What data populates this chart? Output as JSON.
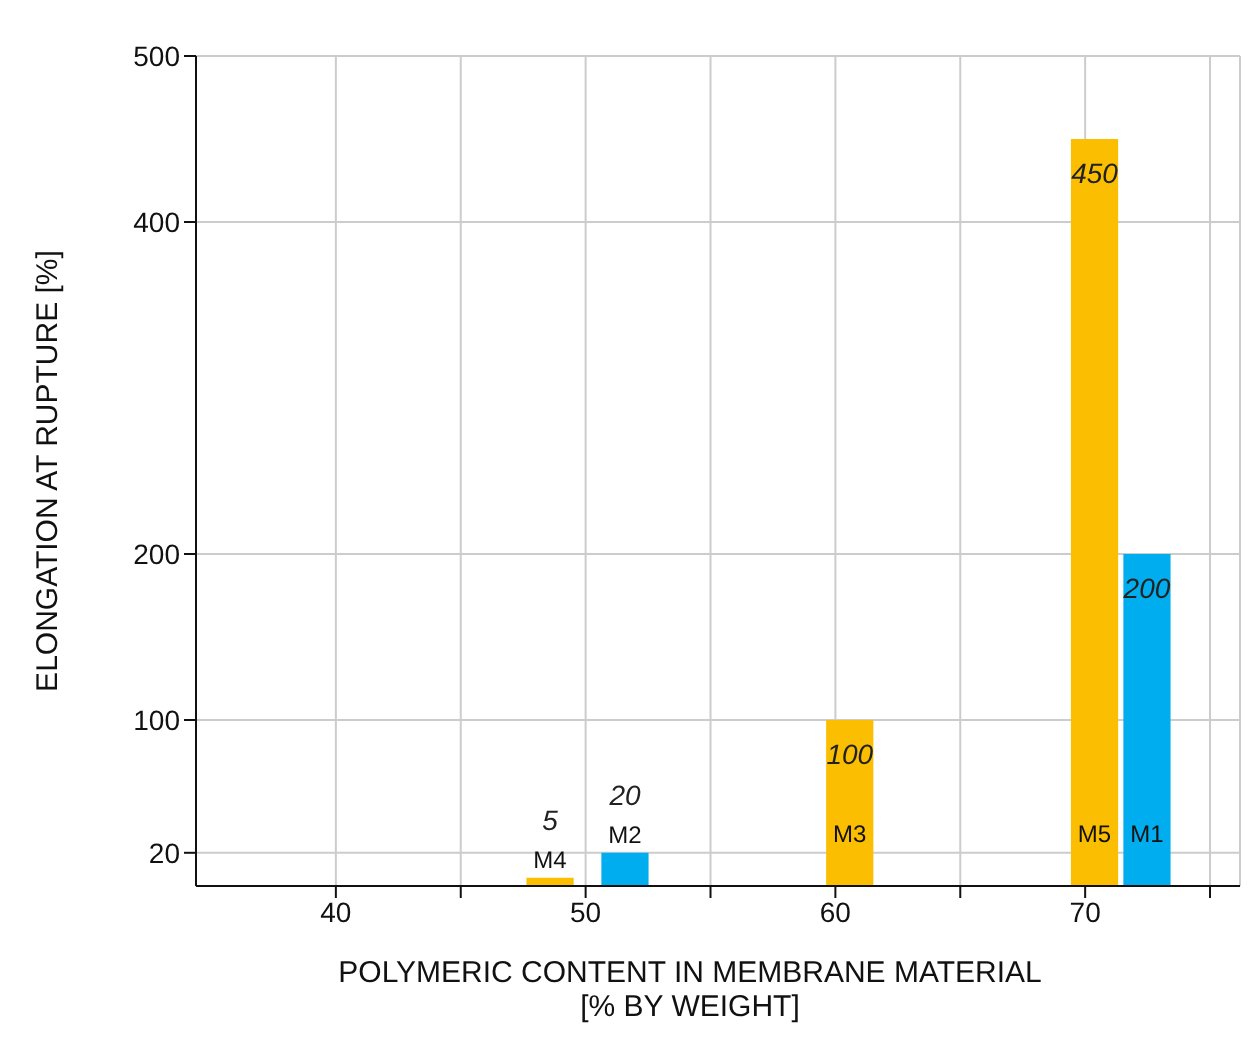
{
  "chart_data": {
    "type": "bar",
    "xlabel": "POLYMERIC CONTENT IN MEMBRANE MATERIAL\n[% BY WEIGHT]",
    "ylabel": "ELONGATION AT RUPTURE [%]",
    "series": [
      {
        "name": "M4",
        "color": "#fbbe00",
        "x": [
          48.6
        ],
        "values": [
          5
        ]
      },
      {
        "name": "M2",
        "color": "#00aeef",
        "x": [
          51.6
        ],
        "values": [
          20
        ]
      },
      {
        "name": "M3",
        "color": "#fbbe00",
        "x": [
          60.6
        ],
        "values": [
          100
        ]
      },
      {
        "name": "M5",
        "color": "#fbbe00",
        "x": [
          70.4
        ],
        "values": [
          450
        ]
      },
      {
        "name": "M1",
        "color": "#00aeef",
        "x": [
          72.5
        ],
        "values": [
          200
        ]
      }
    ],
    "data_labels": true,
    "xlim": [
      34.4,
      76.2
    ],
    "xticks": [
      40,
      {
        "value": 45,
        "label": null
      },
      50,
      {
        "value": 55,
        "label": null
      },
      60,
      {
        "value": 65,
        "label": null
      },
      70,
      {
        "value": 75,
        "label": null
      }
    ],
    "ylim": [
      0,
      500
    ],
    "yticks": [
      20,
      100,
      200,
      400,
      500
    ],
    "grid": true
  }
}
